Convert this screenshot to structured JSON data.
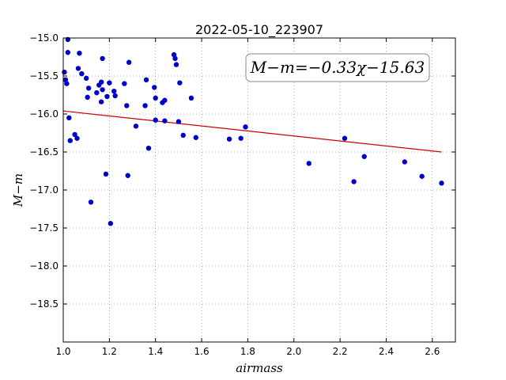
{
  "chart_data": {
    "type": "scatter",
    "title": "2022-05-10_223907",
    "xlabel": "airmass",
    "ylabel": "M−m",
    "xlim": [
      1.0,
      2.7
    ],
    "ylim": [
      -15.0,
      -19.0
    ],
    "y_inverted": true,
    "grid": true,
    "x_ticks": [
      "1.0",
      "1.2",
      "1.4",
      "1.6",
      "1.8",
      "2.0",
      "2.2",
      "2.4",
      "2.6"
    ],
    "y_ticks": [
      "−15.0",
      "−15.5",
      "−16.0",
      "−16.5",
      "−17.0",
      "−17.5",
      "−18.0",
      "−18.5"
    ],
    "annotation": "M−m=−0.33χ−15.63",
    "fit_line": {
      "x": [
        1.0,
        2.64
      ],
      "y": [
        -15.96,
        -16.5
      ],
      "color": "#cc0000"
    },
    "marker_color": "#0000cc",
    "points": [
      [
        1.005,
        -15.45
      ],
      [
        1.01,
        -15.55
      ],
      [
        1.015,
        -15.6
      ],
      [
        1.02,
        -15.02
      ],
      [
        1.02,
        -15.19
      ],
      [
        1.025,
        -16.05
      ],
      [
        1.03,
        -16.35
      ],
      [
        1.05,
        -16.27
      ],
      [
        1.06,
        -16.32
      ],
      [
        1.065,
        -15.4
      ],
      [
        1.07,
        -15.2
      ],
      [
        1.08,
        -15.47
      ],
      [
        1.1,
        -15.53
      ],
      [
        1.105,
        -15.78
      ],
      [
        1.11,
        -15.66
      ],
      [
        1.12,
        -17.16
      ],
      [
        1.145,
        -15.72
      ],
      [
        1.155,
        -15.62
      ],
      [
        1.165,
        -15.58
      ],
      [
        1.165,
        -15.84
      ],
      [
        1.17,
        -15.68
      ],
      [
        1.17,
        -15.27
      ],
      [
        1.185,
        -16.79
      ],
      [
        1.19,
        -15.77
      ],
      [
        1.2,
        -15.59
      ],
      [
        1.205,
        -17.44
      ],
      [
        1.22,
        -15.7
      ],
      [
        1.225,
        -15.76
      ],
      [
        1.265,
        -15.6
      ],
      [
        1.275,
        -15.89
      ],
      [
        1.28,
        -16.81
      ],
      [
        1.285,
        -15.32
      ],
      [
        1.315,
        -16.16
      ],
      [
        1.355,
        -15.89
      ],
      [
        1.36,
        -15.55
      ],
      [
        1.37,
        -16.45
      ],
      [
        1.395,
        -15.65
      ],
      [
        1.4,
        -16.08
      ],
      [
        1.4,
        -15.79
      ],
      [
        1.43,
        -15.85
      ],
      [
        1.44,
        -16.09
      ],
      [
        1.44,
        -15.82
      ],
      [
        1.48,
        -15.22
      ],
      [
        1.485,
        -15.27
      ],
      [
        1.49,
        -15.35
      ],
      [
        1.5,
        -16.1
      ],
      [
        1.505,
        -15.59
      ],
      [
        1.52,
        -16.28
      ],
      [
        1.555,
        -15.79
      ],
      [
        1.575,
        -16.31
      ],
      [
        1.72,
        -16.33
      ],
      [
        1.77,
        -16.32
      ],
      [
        1.79,
        -16.17
      ],
      [
        2.065,
        -16.65
      ],
      [
        2.22,
        -16.32
      ],
      [
        2.26,
        -16.89
      ],
      [
        2.305,
        -16.56
      ],
      [
        2.48,
        -16.63
      ],
      [
        2.555,
        -16.82
      ],
      [
        2.64,
        -16.91
      ]
    ]
  }
}
